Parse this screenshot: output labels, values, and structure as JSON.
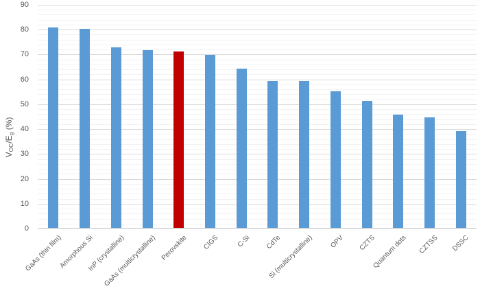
{
  "chart_data": {
    "type": "bar",
    "title": "",
    "xlabel": "",
    "ylabel": "V_OC/E_g (%)",
    "ylabel_parts": [
      {
        "text": "V",
        "subscript": false
      },
      {
        "text": "OC",
        "subscript": true
      },
      {
        "text": "/E",
        "subscript": false
      },
      {
        "text": "g",
        "subscript": true
      },
      {
        "text": " (%)",
        "subscript": false
      }
    ],
    "categories": [
      "GaAs (thin film)",
      "Amorphous Si",
      "InP (crystalline)",
      "GaAs (multicrystalline)",
      "Perovskite",
      "CIGS",
      "C-Si",
      "CdTe",
      "Si (multicrystalline)",
      "OPV",
      "CZTS",
      "Quantum dots",
      "CZTSS",
      "DSSC"
    ],
    "values": [
      80.5,
      80,
      72.5,
      71.5,
      71,
      69.5,
      64,
      59,
      59,
      55,
      51,
      45.5,
      44.5,
      39
    ],
    "highlight_index": 4,
    "highlight_category": "Perovskite",
    "ylim": [
      0,
      90
    ],
    "y_ticks": [
      0,
      10,
      20,
      30,
      40,
      50,
      60,
      70,
      80,
      90
    ],
    "y_major_step": 10,
    "y_minor_step": 2,
    "grid": true,
    "legend": "none",
    "colors": {
      "bar_default": "#5B9BD5",
      "bar_highlight": "#C00000",
      "major_gridline": "#D9D9D9",
      "minor_gridline": "#F2F2F2",
      "axis_line": "#BFBFBF",
      "text": "#595959",
      "background": "#FFFFFF"
    }
  }
}
